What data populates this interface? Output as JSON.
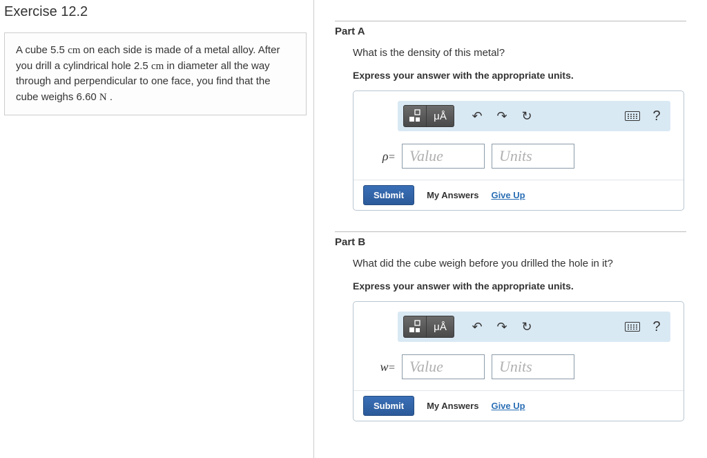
{
  "exercise": {
    "title": "Exercise 12.2",
    "problem_html": "A cube 5.5&nbsp;<span class='unit'>cm</span> on each side is made of a metal alloy. After you drill a cylindrical hole 2.5&nbsp;<span class='unit'>cm</span> in diameter all the way through and perpendicular to one face, you find that the cube weighs 6.60&nbsp;<span class='unit'>N</span> ."
  },
  "parts": {
    "A": {
      "label": "Part A",
      "question": "What is the density of this metal?",
      "instruction": "Express your answer with the appropriate units.",
      "variable": "ρ",
      "value_placeholder": "Value",
      "units_placeholder": "Units"
    },
    "B": {
      "label": "Part B",
      "question": "What did the cube weigh before you drilled the hole in it?",
      "instruction": "Express your answer with the appropriate units.",
      "variable": "w",
      "value_placeholder": "Value",
      "units_placeholder": "Units"
    }
  },
  "toolbar": {
    "templates_tooltip": "Templates",
    "symbols_label": "μÅ",
    "undo_tooltip": "Undo",
    "redo_tooltip": "Redo",
    "reset_tooltip": "Reset",
    "keyboard_tooltip": "Keyboard",
    "help_label": "?"
  },
  "actions": {
    "submit": "Submit",
    "my_answers": "My Answers",
    "give_up": "Give Up"
  },
  "colors": {
    "toolbar_bg": "#d9e9f4",
    "submit_bg": "#2b5a99",
    "link": "#2b6fb5",
    "border": "#b8c6d1"
  }
}
